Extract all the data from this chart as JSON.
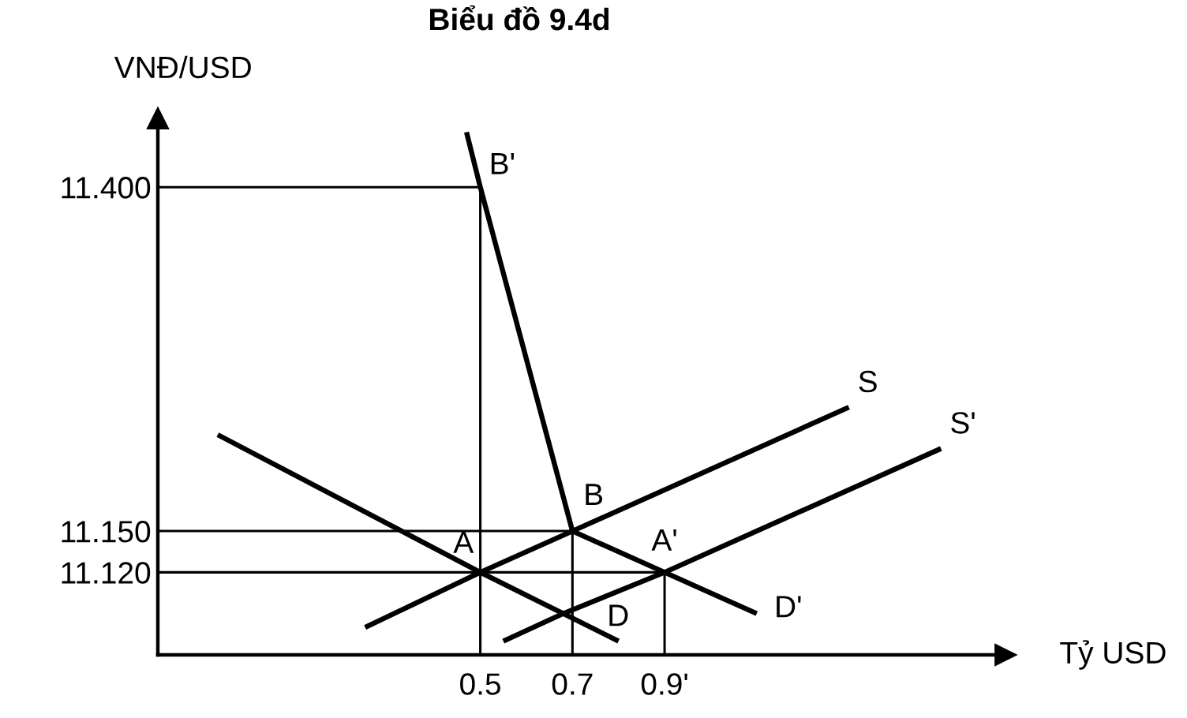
{
  "chart_data": {
    "type": "line",
    "title": "Biểu đồ 9.4d",
    "xlabel": "Tỷ USD",
    "ylabel": "VNĐ/USD",
    "xlim": [
      -0.2,
      1.64
    ],
    "ylim": [
      11.06,
      11.45
    ],
    "xticks": [
      0.5,
      0.7,
      {
        "value": 0.9,
        "label": "0.9'"
      }
    ],
    "yticks": [
      {
        "value": 11.12,
        "label": "11.120"
      },
      {
        "value": 11.15,
        "label": "11.150"
      },
      {
        "value": 11.4,
        "label": "11.400"
      }
    ],
    "series": [
      {
        "type": "step",
        "color": "#000000",
        "x": [
          -0.2,
          0.5
        ],
        "values": [
          11.4,
          11.06
        ]
      },
      {
        "type": "step",
        "color": "#000000",
        "x": [
          -0.2,
          0.7
        ],
        "values": [
          11.15,
          11.06
        ]
      },
      {
        "type": "step",
        "color": "#000000",
        "x": [
          -0.2,
          0.9
        ],
        "values": [
          11.12,
          11.06
        ]
      },
      {
        "name": "S",
        "color": "#000000",
        "x": [
          0.25,
          0.5,
          0.7,
          1.3
        ],
        "values": [
          11.08,
          11.12,
          11.15,
          11.24
        ]
      },
      {
        "name": "S'",
        "color": "#000000",
        "x": [
          0.55,
          0.68,
          0.9,
          1.5
        ],
        "values": [
          11.07,
          11.09,
          11.12,
          11.21
        ]
      },
      {
        "color": "#000000",
        "x": [
          -0.07,
          0.5,
          0.68,
          0.8
        ],
        "values": [
          11.22,
          11.12,
          11.09,
          11.07
        ]
      },
      {
        "name": "D'",
        "color": "#000000",
        "x": [
          0.47,
          0.5,
          0.7,
          0.9,
          1.1
        ],
        "values": [
          11.44,
          11.4,
          11.15,
          11.12,
          11.09
        ]
      }
    ],
    "annotations": [
      {
        "text": "B'",
        "x": 0.5,
        "y": 11.4
      },
      {
        "text": "B",
        "x": 0.7,
        "y": 11.15
      },
      {
        "text": "A",
        "x": 0.5,
        "y": 11.12
      },
      {
        "text": "A'",
        "x": 0.9,
        "y": 11.12
      },
      {
        "text": "D",
        "x": 0.68,
        "y": 11.09
      }
    ]
  }
}
